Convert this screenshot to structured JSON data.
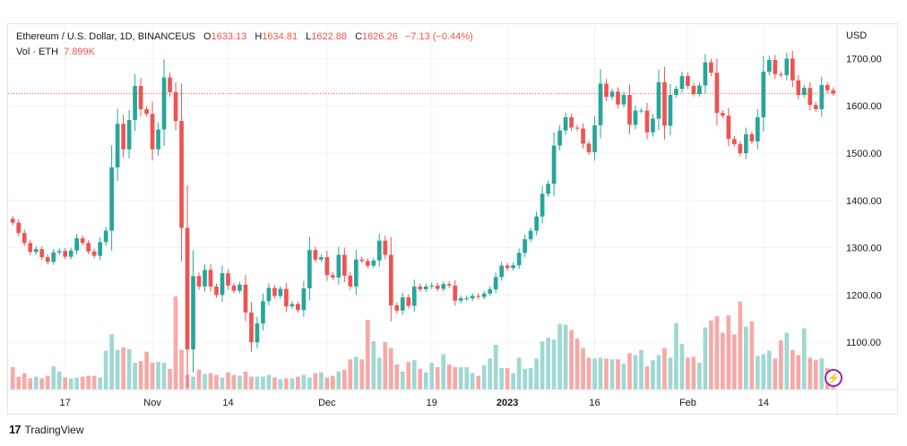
{
  "legend": {
    "symbol": "Ethereum / U.S. Dollar, 1D, BINANCEUS",
    "o_label": "O",
    "o_value": "1633.13",
    "h_label": "H",
    "h_value": "1634.81",
    "l_label": "L",
    "l_value": "1622.88",
    "c_label": "C",
    "c_value": "1626.26",
    "change": "−7.13 (−0.44%)",
    "volume_label": "Vol · ETH",
    "volume_value": "7.899K"
  },
  "currency_label": "USD",
  "branding": {
    "logo_text": "TradingView",
    "logo_mark": "17"
  },
  "colors": {
    "up": "#26a69a",
    "down": "#ef5350",
    "up_volume": "#9fd8d2",
    "down_volume": "#f6a9a7",
    "grid": "#f0f3fa",
    "price_line": "#ef5350"
  },
  "chart_data": {
    "type": "candlestick",
    "instrument": "Ethereum / U.S. Dollar",
    "interval": "1D",
    "exchange": "BINANCEUS",
    "last_price": 1626.26,
    "ylim": [
      1000,
      1750
    ],
    "y_ticks": [
      1100,
      1200,
      1300,
      1400,
      1500,
      1600,
      1700
    ],
    "y_tick_labels": [
      "1100.00",
      "1200.00",
      "1300.00",
      "1400.00",
      "1500.00",
      "1600.00",
      "1700.00"
    ],
    "x_tick_labels": [
      {
        "label": "17",
        "index": 9
      },
      {
        "label": "Nov",
        "index": 24
      },
      {
        "label": "14",
        "index": 37
      },
      {
        "label": "Dec",
        "index": 54
      },
      {
        "label": "19",
        "index": 72
      },
      {
        "label": "2023",
        "index": 85
      },
      {
        "label": "16",
        "index": 100
      },
      {
        "label": "Feb",
        "index": 116
      },
      {
        "label": "14",
        "index": 129
      }
    ],
    "grid": true,
    "close": [
      1353,
      1331,
      1310,
      1291,
      1297,
      1280,
      1270,
      1290,
      1293,
      1281,
      1294,
      1320,
      1310,
      1292,
      1283,
      1312,
      1336,
      1470,
      1562,
      1508,
      1570,
      1642,
      1593,
      1583,
      1508,
      1550,
      1660,
      1629,
      1568,
      1342,
      1085,
      1240,
      1218,
      1253,
      1218,
      1200,
      1246,
      1220,
      1209,
      1222,
      1163,
      1100,
      1140,
      1187,
      1215,
      1198,
      1213,
      1176,
      1181,
      1168,
      1214,
      1295,
      1275,
      1280,
      1242,
      1237,
      1285,
      1241,
      1218,
      1275,
      1272,
      1262,
      1273,
      1315,
      1285,
      1178,
      1167,
      1195,
      1177,
      1218,
      1212,
      1218,
      1220,
      1213,
      1223,
      1220,
      1188,
      1193,
      1193,
      1198,
      1196,
      1203,
      1212,
      1238,
      1262,
      1257,
      1263,
      1289,
      1318,
      1336,
      1366,
      1414,
      1435,
      1516,
      1548,
      1576,
      1554,
      1552,
      1520,
      1502,
      1559,
      1647,
      1619,
      1630,
      1603,
      1623,
      1560,
      1590,
      1590,
      1544,
      1573,
      1650,
      1558,
      1623,
      1636,
      1663,
      1642,
      1625,
      1643,
      1692,
      1670,
      1585,
      1579,
      1530,
      1519,
      1500,
      1540,
      1525,
      1576,
      1672,
      1697,
      1667,
      1665,
      1700,
      1654,
      1623,
      1638,
      1602,
      1593,
      1644,
      1633,
      1626
    ],
    "volume_scale_note": "relative",
    "volume": [
      26,
      15,
      19,
      13,
      15,
      13,
      16,
      27,
      21,
      14,
      13,
      14,
      15,
      16,
      16,
      14,
      45,
      64,
      46,
      49,
      47,
      31,
      33,
      44,
      31,
      32,
      31,
      24,
      108,
      46,
      17,
      15,
      23,
      18,
      19,
      17,
      14,
      20,
      17,
      16,
      21,
      15,
      15,
      15,
      17,
      14,
      12,
      13,
      13,
      15,
      17,
      14,
      19,
      20,
      14,
      16,
      21,
      23,
      35,
      38,
      35,
      81,
      56,
      37,
      55,
      48,
      29,
      21,
      32,
      34,
      24,
      20,
      31,
      26,
      41,
      29,
      26,
      26,
      26,
      19,
      16,
      28,
      36,
      52,
      25,
      25,
      19,
      37,
      24,
      25,
      36,
      56,
      60,
      58,
      76,
      75,
      69,
      59,
      48,
      37,
      36,
      37,
      36,
      35,
      35,
      30,
      42,
      40,
      46,
      27,
      34,
      40,
      48,
      37,
      77,
      53,
      37,
      38,
      31,
      72,
      80,
      85,
      66,
      86,
      64,
      102,
      73,
      79,
      39,
      41,
      45,
      36,
      57,
      66,
      46,
      40,
      71,
      37,
      34,
      36,
      25,
      21
    ]
  }
}
